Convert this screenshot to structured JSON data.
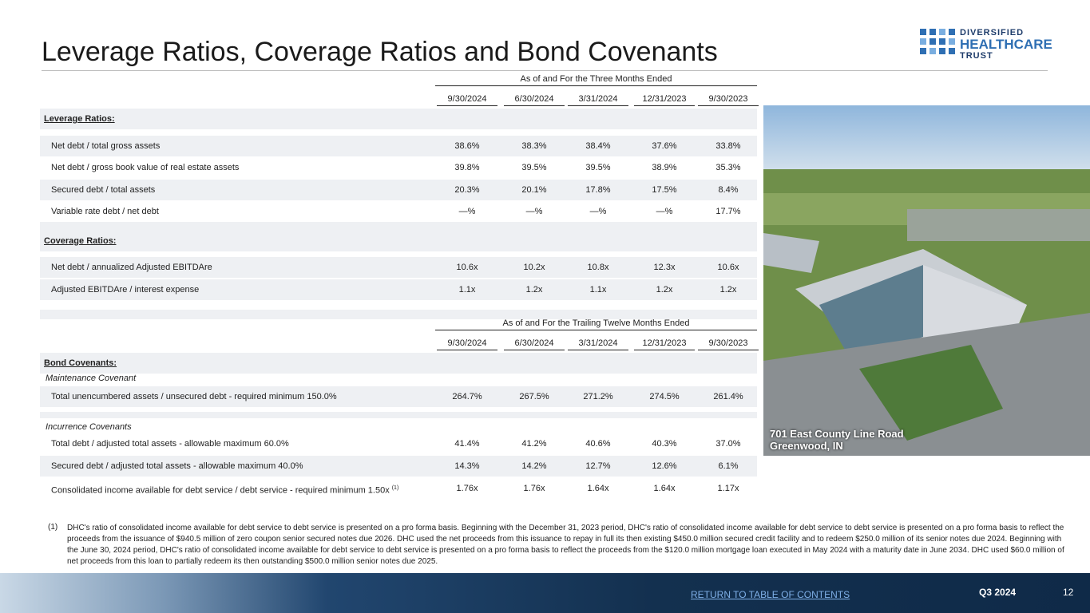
{
  "header": {
    "title": "Leverage Ratios, Coverage Ratios and Bond Covenants",
    "logo": [
      "DIVERSIFIED",
      "HEALTHCARE",
      "TRUST"
    ]
  },
  "table1": {
    "group_header": "As of and For the Three Months Ended",
    "columns": [
      "9/30/2024",
      "6/30/2024",
      "3/31/2024",
      "12/31/2023",
      "9/30/2023"
    ],
    "rows": [
      {
        "section": "Leverage Ratios:"
      },
      {
        "label": "Net debt / total gross assets",
        "values": [
          "38.6%",
          "38.3%",
          "38.4%",
          "37.6%",
          "33.8%"
        ]
      },
      {
        "label": "Net debt / gross book value of real estate assets",
        "values": [
          "39.8%",
          "39.5%",
          "39.5%",
          "38.9%",
          "35.3%"
        ]
      },
      {
        "label": "Secured debt / total assets",
        "values": [
          "20.3%",
          "20.1%",
          "17.8%",
          "17.5%",
          "8.4%"
        ]
      },
      {
        "label": "Variable rate debt / net debt",
        "values": [
          "—%",
          "—%",
          "—%",
          "—%",
          "17.7%"
        ]
      },
      {
        "section": "Coverage Ratios:"
      },
      {
        "label": "Net debt / annualized Adjusted EBITDAre",
        "values": [
          "10.6x",
          "10.2x",
          "10.8x",
          "12.3x",
          "10.6x"
        ]
      },
      {
        "label": "Adjusted EBITDAre / interest expense",
        "values": [
          "1.1x",
          "1.2x",
          "1.1x",
          "1.2x",
          "1.2x"
        ]
      }
    ]
  },
  "table2": {
    "group_header": "As of and For the Trailing Twelve Months Ended",
    "columns": [
      "9/30/2024",
      "6/30/2024",
      "3/31/2024",
      "12/31/2023",
      "9/30/2023"
    ],
    "rows": [
      {
        "section": "Bond Covenants:"
      },
      {
        "subsection": "Maintenance Covenant"
      },
      {
        "label": "Total unencumbered assets / unsecured debt - required minimum 150.0%",
        "values": [
          "264.7%",
          "267.5%",
          "271.2%",
          "274.5%",
          "261.4%"
        ]
      },
      {
        "subsection": "Incurrence Covenants"
      },
      {
        "label": "Total debt / adjusted total assets - allowable maximum 60.0%",
        "values": [
          "41.4%",
          "41.2%",
          "40.6%",
          "40.3%",
          "37.0%"
        ]
      },
      {
        "label": "Secured debt / adjusted total assets - allowable maximum 40.0%",
        "values": [
          "14.3%",
          "14.2%",
          "12.7%",
          "12.6%",
          "6.1%"
        ]
      },
      {
        "label": "Consolidated income available for debt service / debt service - required minimum 1.50x",
        "note": "(1)",
        "values": [
          "1.76x",
          "1.76x",
          "1.64x",
          "1.64x",
          "1.17x"
        ]
      }
    ]
  },
  "photo": {
    "caption": [
      "701 East County Line Road",
      "Greenwood, IN"
    ]
  },
  "footnote": {
    "marker": "(1)",
    "text": "DHC's ratio of consolidated income available for debt service to debt service is presented on a pro forma basis. Beginning with the December 31, 2023 period, DHC's ratio of consolidated income available for debt service to debt service is presented on a pro forma basis to reflect the proceeds from the issuance of $940.5 million of zero coupon senior secured notes due 2026. DHC used the net proceeds from this issuance to repay in full its then existing $450.0 million secured credit facility and to redeem $250.0 million of its senior notes due 2024. Beginning with the June 30, 2024 period, DHC's ratio of consolidated income available for debt service to debt service is presented on a pro forma basis to reflect the proceeds from the $120.0 million mortgage loan executed in May 2024 with a maturity date in June 2034. DHC used $60.0 million of net proceeds from this loan to partially redeem its then outstanding $500.0 million senior notes due 2025."
  },
  "footer": {
    "link": "RETURN TO TABLE OF CONTENTS",
    "period": "Q3 2024",
    "page": "12"
  }
}
